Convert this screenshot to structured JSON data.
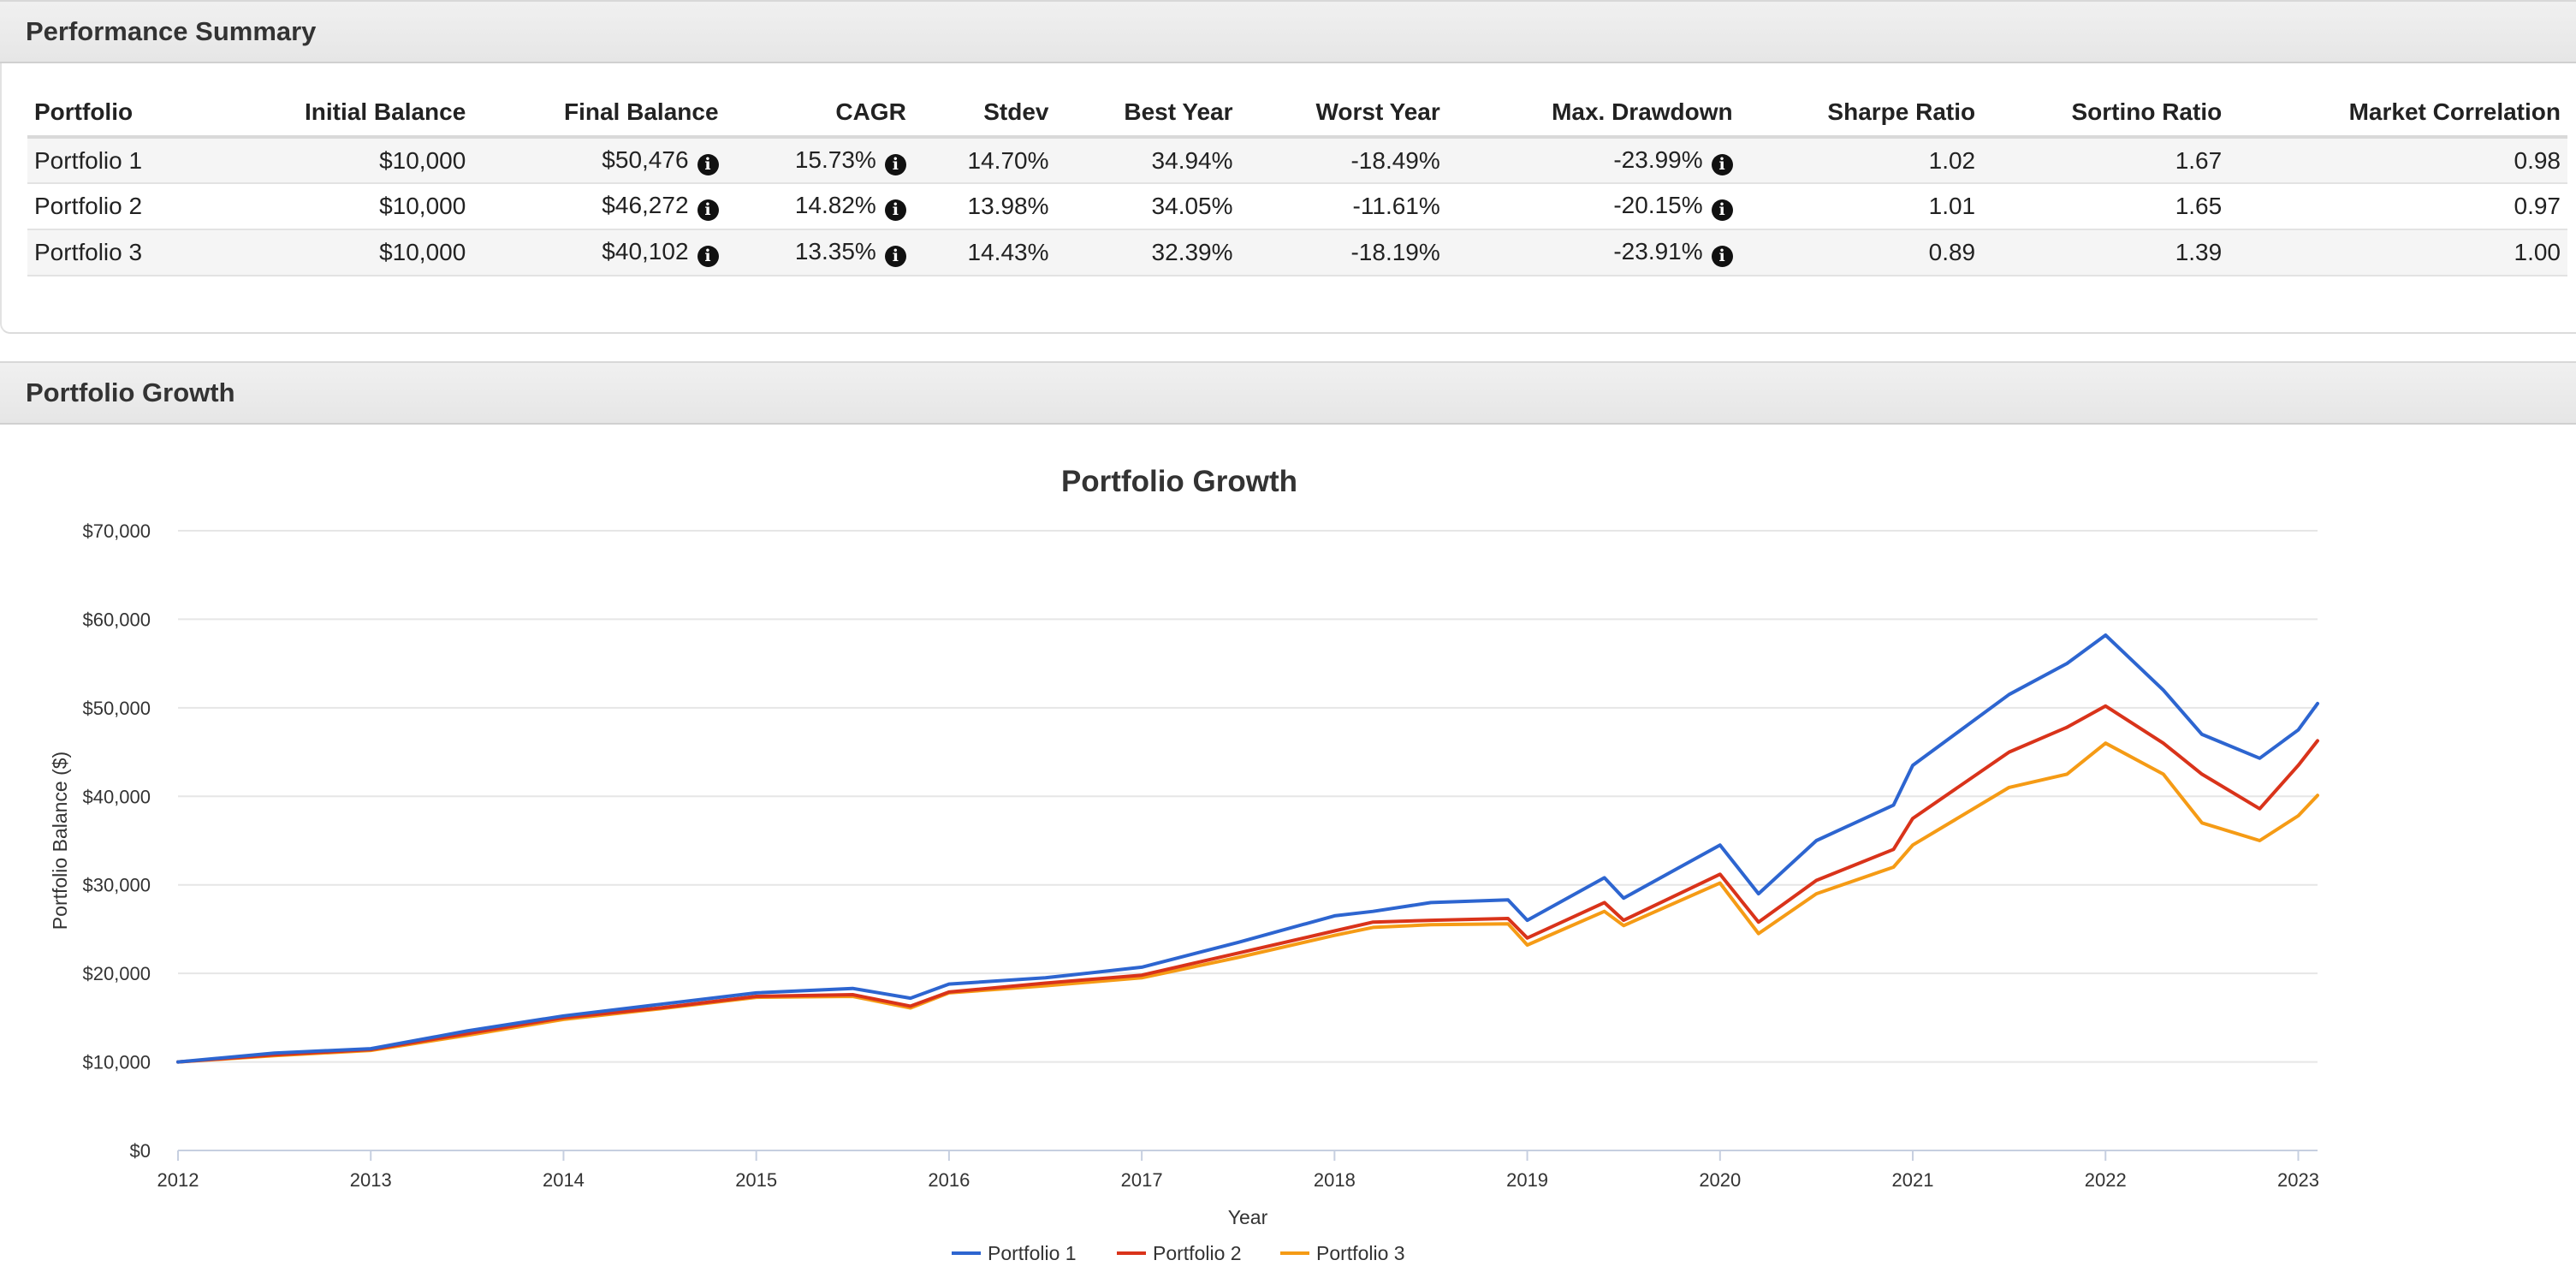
{
  "summary": {
    "title": "Performance Summary",
    "columns": [
      "Portfolio",
      "Initial Balance",
      "Final Balance",
      "CAGR",
      "Stdev",
      "Best Year",
      "Worst Year",
      "Max. Drawdown",
      "Sharpe Ratio",
      "Sortino Ratio",
      "Market Correlation"
    ],
    "rows": [
      [
        "Portfolio 1",
        "$10,000",
        "$50,476",
        "15.73%",
        "14.70%",
        "34.94%",
        "-18.49%",
        "-23.99%",
        "1.02",
        "1.67",
        "0.98"
      ],
      [
        "Portfolio 2",
        "$10,000",
        "$46,272",
        "14.82%",
        "13.98%",
        "34.05%",
        "-11.61%",
        "-20.15%",
        "1.01",
        "1.65",
        "0.97"
      ],
      [
        "Portfolio 3",
        "$10,000",
        "$40,102",
        "13.35%",
        "14.43%",
        "32.39%",
        "-18.19%",
        "-23.91%",
        "0.89",
        "1.39",
        "1.00"
      ]
    ],
    "info_icon": "info-circle-icon",
    "info_columns": [
      2,
      3,
      7
    ]
  },
  "growth": {
    "title": "Portfolio Growth"
  },
  "chart_data": {
    "type": "line",
    "title": "Portfolio Growth",
    "xlabel": "Year",
    "ylabel": "Portfolio Balance ($)",
    "xlim": [
      2012,
      2023.1
    ],
    "ylim": [
      0,
      70000
    ],
    "x_ticks": [
      2012,
      2013,
      2014,
      2015,
      2016,
      2017,
      2018,
      2019,
      2020,
      2021,
      2022,
      2023
    ],
    "y_ticks": [
      0,
      10000,
      20000,
      30000,
      40000,
      50000,
      60000,
      70000
    ],
    "y_tick_labels": [
      "$0",
      "$10,000",
      "$20,000",
      "$30,000",
      "$40,000",
      "$50,000",
      "$60,000",
      "$70,000"
    ],
    "grid": true,
    "legend_position": "bottom-center",
    "x": [
      2012.0,
      2012.5,
      2013.0,
      2013.5,
      2014.0,
      2014.5,
      2015.0,
      2015.5,
      2015.8,
      2016.0,
      2016.5,
      2017.0,
      2017.5,
      2018.0,
      2018.2,
      2018.5,
      2018.9,
      2019.0,
      2019.4,
      2019.5,
      2020.0,
      2020.2,
      2020.5,
      2020.9,
      2021.0,
      2021.5,
      2021.8,
      2022.0,
      2022.3,
      2022.5,
      2022.8,
      2023.0,
      2023.1
    ],
    "series": [
      {
        "name": "Portfolio 1",
        "color": "#2d65d0",
        "values": [
          10000,
          11000,
          11500,
          13500,
          15200,
          16500,
          17800,
          18300,
          17200,
          18800,
          19500,
          20700,
          23500,
          26500,
          27000,
          28000,
          28300,
          26000,
          30800,
          28500,
          34500,
          29000,
          35000,
          39000,
          43500,
          51500,
          55000,
          58200,
          52000,
          47000,
          44300,
          47500,
          50476
        ]
      },
      {
        "name": "Portfolio 2",
        "color": "#d9331a",
        "values": [
          10000,
          10800,
          11400,
          13200,
          15000,
          16100,
          17400,
          17600,
          16300,
          17900,
          18900,
          19800,
          22300,
          24800,
          25800,
          26000,
          26200,
          24000,
          28000,
          26000,
          31200,
          25800,
          30500,
          34000,
          37500,
          45000,
          47800,
          50200,
          46000,
          42500,
          38600,
          43500,
          46272
        ]
      },
      {
        "name": "Portfolio 3",
        "color": "#f59b15",
        "values": [
          10000,
          10700,
          11300,
          13000,
          14800,
          16000,
          17300,
          17400,
          16100,
          17800,
          18600,
          19500,
          21800,
          24300,
          25200,
          25500,
          25600,
          23200,
          27000,
          25400,
          30200,
          24500,
          29000,
          32000,
          34500,
          41000,
          42500,
          46000,
          42500,
          37000,
          35000,
          37800,
          40102
        ]
      }
    ]
  }
}
